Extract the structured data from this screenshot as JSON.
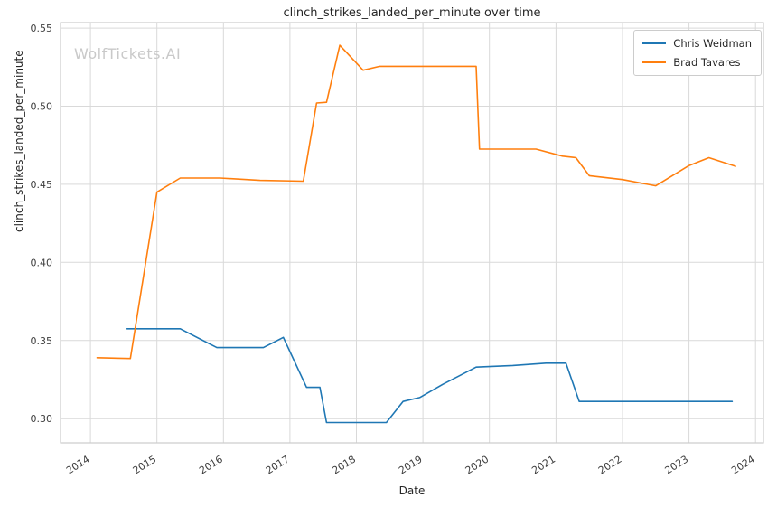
{
  "watermark": "WolfTickets.AI",
  "chart_data": {
    "type": "line",
    "title": "clinch_strikes_landed_per_minute over time",
    "xlabel": "Date",
    "ylabel": "clinch_strikes_landed_per_minute",
    "grid": true,
    "grid_color": "#d9d9d9",
    "border_color": "#cccccc",
    "legend_position": "upper right",
    "xlim": [
      2013.55,
      2024.12
    ],
    "ylim": [
      0.2845,
      0.5535
    ],
    "xtick_values": [
      2014,
      2015,
      2016,
      2017,
      2018,
      2019,
      2020,
      2021,
      2022,
      2023,
      2024
    ],
    "xtick_labels": [
      "2014",
      "2015",
      "2016",
      "2017",
      "2018",
      "2019",
      "2020",
      "2021",
      "2022",
      "2023",
      "2024"
    ],
    "ytick_values": [
      0.3,
      0.35,
      0.4,
      0.45,
      0.5,
      0.55
    ],
    "ytick_labels": [
      "0.30",
      "0.35",
      "0.40",
      "0.45",
      "0.50",
      "0.55"
    ],
    "series": [
      {
        "name": "Chris Weidman",
        "color": "#1f77b4",
        "points": [
          [
            2014.55,
            0.3575
          ],
          [
            2015.35,
            0.3575
          ],
          [
            2015.9,
            0.3455
          ],
          [
            2016.6,
            0.3455
          ],
          [
            2016.9,
            0.352
          ],
          [
            2017.25,
            0.32
          ],
          [
            2017.45,
            0.32
          ],
          [
            2017.55,
            0.2975
          ],
          [
            2018.45,
            0.2975
          ],
          [
            2018.7,
            0.311
          ],
          [
            2018.95,
            0.3135
          ],
          [
            2019.3,
            0.322
          ],
          [
            2019.8,
            0.333
          ],
          [
            2020.35,
            0.334
          ],
          [
            2020.85,
            0.3355
          ],
          [
            2021.15,
            0.3355
          ],
          [
            2021.35,
            0.311
          ],
          [
            2023.65,
            0.311
          ]
        ]
      },
      {
        "name": "Brad Tavares",
        "color": "#ff7f0e",
        "points": [
          [
            2014.1,
            0.339
          ],
          [
            2014.6,
            0.3385
          ],
          [
            2015.0,
            0.445
          ],
          [
            2015.35,
            0.454
          ],
          [
            2015.95,
            0.454
          ],
          [
            2016.55,
            0.4525
          ],
          [
            2017.2,
            0.452
          ],
          [
            2017.4,
            0.502
          ],
          [
            2017.55,
            0.5025
          ],
          [
            2017.75,
            0.539
          ],
          [
            2018.1,
            0.523
          ],
          [
            2018.35,
            0.5255
          ],
          [
            2019.8,
            0.5255
          ],
          [
            2019.85,
            0.4725
          ],
          [
            2020.7,
            0.4725
          ],
          [
            2021.1,
            0.468
          ],
          [
            2021.3,
            0.467
          ],
          [
            2021.5,
            0.4555
          ],
          [
            2022.0,
            0.453
          ],
          [
            2022.5,
            0.449
          ],
          [
            2023.0,
            0.462
          ],
          [
            2023.3,
            0.467
          ],
          [
            2023.7,
            0.4615
          ]
        ]
      }
    ]
  }
}
